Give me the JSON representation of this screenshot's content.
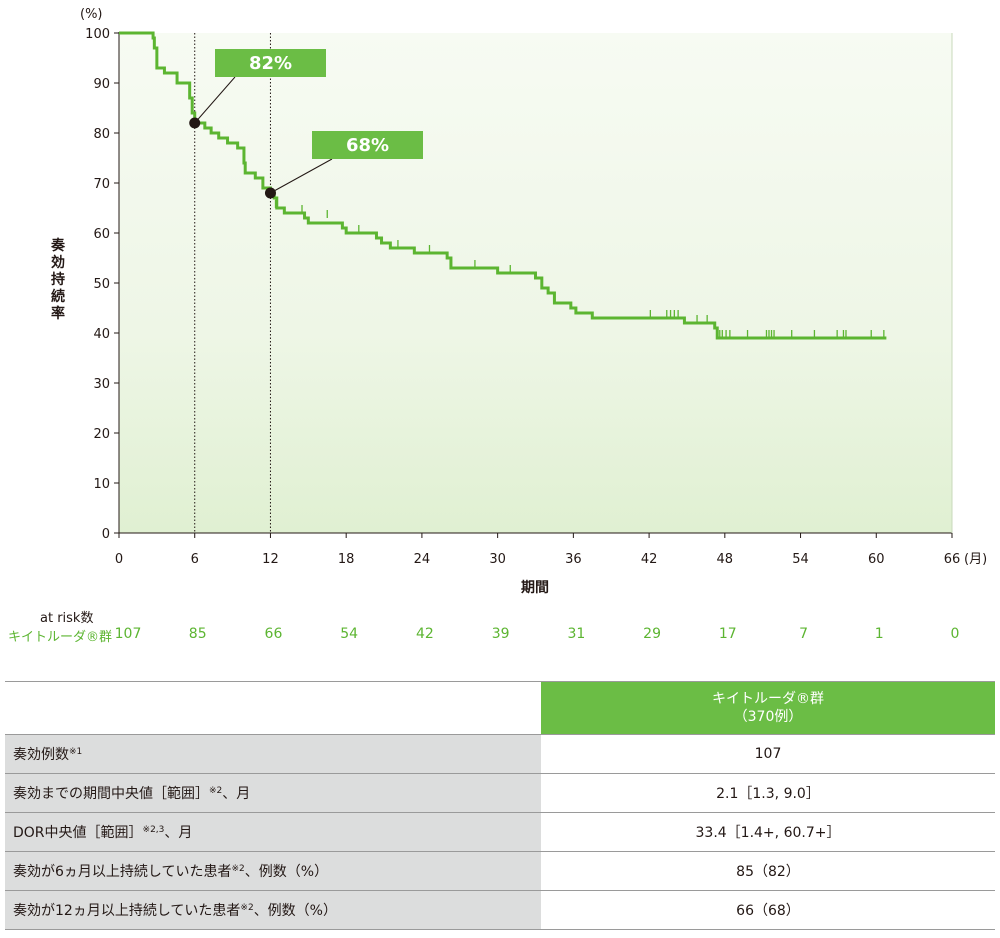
{
  "chart_data": {
    "type": "line",
    "title": "",
    "ylabel": "奏効持続率",
    "yunit": "(%)",
    "xlabel": "期間",
    "xunit": "(月)",
    "xlim": [
      0,
      66
    ],
    "ylim": [
      0,
      100
    ],
    "xticks": [
      0,
      6,
      12,
      18,
      24,
      30,
      36,
      42,
      48,
      54,
      60,
      66
    ],
    "yticks": [
      0,
      10,
      20,
      30,
      40,
      50,
      60,
      70,
      80,
      90,
      100
    ],
    "series": [
      {
        "name": "キイトルーダ®群",
        "color": "#5cb531",
        "step_points": [
          [
            0,
            100
          ],
          [
            2.5,
            100
          ],
          [
            2.7,
            99
          ],
          [
            2.8,
            97
          ],
          [
            3.0,
            93
          ],
          [
            3.4,
            93
          ],
          [
            3.6,
            92
          ],
          [
            4.4,
            92
          ],
          [
            4.6,
            90
          ],
          [
            5.3,
            90
          ],
          [
            5.6,
            87
          ],
          [
            5.8,
            84
          ],
          [
            6.0,
            82
          ],
          [
            6.5,
            82
          ],
          [
            6.8,
            81
          ],
          [
            7.3,
            80
          ],
          [
            7.9,
            79
          ],
          [
            8.6,
            78
          ],
          [
            9.4,
            77
          ],
          [
            9.9,
            74
          ],
          [
            10.0,
            72
          ],
          [
            10.8,
            71
          ],
          [
            11.4,
            69
          ],
          [
            12.0,
            68
          ],
          [
            12.3,
            67
          ],
          [
            12.5,
            65
          ],
          [
            13.1,
            64
          ],
          [
            14.7,
            63
          ],
          [
            15.0,
            62
          ],
          [
            17.7,
            61
          ],
          [
            18.0,
            60
          ],
          [
            20.4,
            59
          ],
          [
            20.8,
            58
          ],
          [
            21.5,
            57
          ],
          [
            23.4,
            56
          ],
          [
            26.0,
            55
          ],
          [
            26.3,
            53
          ],
          [
            30.0,
            52
          ],
          [
            33.0,
            51
          ],
          [
            33.5,
            49
          ],
          [
            34.0,
            48
          ],
          [
            34.5,
            46
          ],
          [
            35.8,
            45
          ],
          [
            36.2,
            44
          ],
          [
            37.5,
            43
          ],
          [
            44.8,
            42
          ],
          [
            47.2,
            41
          ],
          [
            47.4,
            39
          ],
          [
            60.8,
            39
          ]
        ],
        "censored": [
          [
            12.4,
            65
          ],
          [
            14.5,
            64
          ],
          [
            16.5,
            63
          ],
          [
            19.0,
            60
          ],
          [
            22.1,
            57
          ],
          [
            24.6,
            56
          ],
          [
            28.2,
            53
          ],
          [
            31.0,
            52
          ],
          [
            42.1,
            43
          ],
          [
            43.4,
            43
          ],
          [
            43.7,
            43
          ],
          [
            44.0,
            43
          ],
          [
            44.3,
            43
          ],
          [
            45.8,
            42
          ],
          [
            46.6,
            42
          ],
          [
            47.6,
            39
          ],
          [
            47.8,
            39
          ],
          [
            48.1,
            39
          ],
          [
            48.4,
            39
          ],
          [
            49.8,
            39
          ],
          [
            51.3,
            39
          ],
          [
            51.5,
            39
          ],
          [
            51.7,
            39
          ],
          [
            51.9,
            39
          ],
          [
            53.3,
            39
          ],
          [
            55.1,
            39
          ],
          [
            56.9,
            39
          ],
          [
            57.4,
            39
          ],
          [
            57.6,
            39
          ],
          [
            59.6,
            39
          ],
          [
            60.6,
            39
          ]
        ]
      }
    ],
    "annotations": [
      {
        "x": 6,
        "y": 82,
        "label": "82%"
      },
      {
        "x": 12,
        "y": 68,
        "label": "68%"
      }
    ]
  },
  "risk_table": {
    "title": "at risk数",
    "group_label": "キイトルーダ®群",
    "values": [
      "107",
      "85",
      "66",
      "54",
      "42",
      "39",
      "31",
      "29",
      "17",
      "7",
      "1",
      "0"
    ]
  },
  "summary_table": {
    "header": {
      "line1": "キイトルーダ®群",
      "line2": "（370例）"
    },
    "rows": [
      {
        "label": "奏効例数",
        "sup": "※1",
        "suffix": "",
        "value": "107"
      },
      {
        "label": "奏効までの期間中央値［範囲］",
        "sup": "※2",
        "suffix": "、月",
        "value": "2.1［1.3, 9.0］"
      },
      {
        "label": "DOR中央値［範囲］",
        "sup": "※2,3",
        "suffix": "、月",
        "value": "33.4［1.4+, 60.7+］"
      },
      {
        "label": "奏効が6ヵ月以上持続していた患者",
        "sup": "※2",
        "suffix": "、例数（%）",
        "value": "85（82）"
      },
      {
        "label": "奏効が12ヵ月以上持続していた患者",
        "sup": "※2",
        "suffix": "、例数（%）",
        "value": "66（68）"
      }
    ]
  }
}
